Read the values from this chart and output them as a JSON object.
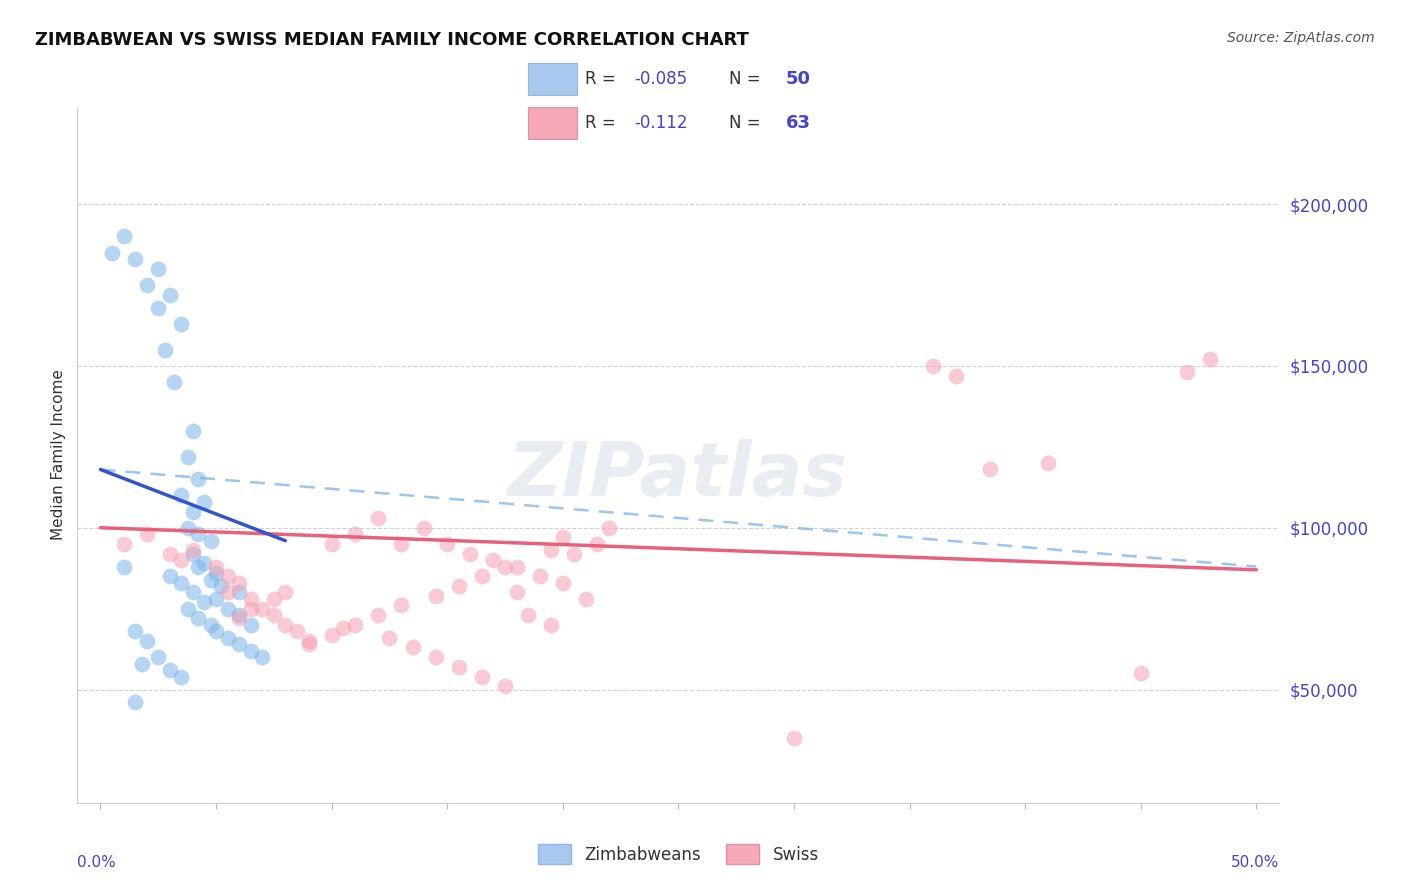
{
  "title": "ZIMBABWEAN VS SWISS MEDIAN FAMILY INCOME CORRELATION CHART",
  "source": "Source: ZipAtlas.com",
  "ylabel": "Median Family Income",
  "xlim": [
    -1,
    51
  ],
  "ylim": [
    15000,
    230000
  ],
  "yticks": [
    50000,
    100000,
    150000,
    200000
  ],
  "ytick_labels": [
    "$50,000",
    "$100,000",
    "$150,000",
    "$200,000"
  ],
  "title_fontsize": 13,
  "axis_color": "#4444cc",
  "background_color": "#ffffff",
  "grid_color": "#cccccc",
  "watermark_text": "ZIPatlas",
  "zim_color": "#7ab3e8",
  "swiss_color": "#f5a0b0",
  "zim_trend_color": "#3355cc",
  "swiss_trend_color": "#e8607a",
  "zim_dashed_color": "#88bbee",
  "zim_points_x": [
    0.5,
    1.0,
    1.5,
    2.0,
    2.5,
    3.0,
    2.5,
    3.5,
    2.8,
    3.2,
    4.0,
    3.8,
    4.2,
    3.5,
    4.0,
    4.5,
    3.8,
    4.2,
    4.8,
    4.0,
    4.5,
    4.2,
    5.0,
    4.8,
    5.2,
    6.0,
    5.0,
    5.5,
    6.0,
    6.5,
    1.5,
    1.0,
    1.5,
    2.0,
    2.5,
    1.8,
    3.0,
    3.5,
    3.0,
    3.5,
    4.0,
    4.5,
    3.8,
    4.2,
    4.8,
    5.0,
    5.5,
    6.0,
    6.5,
    7.0
  ],
  "zim_points_y": [
    185000,
    190000,
    183000,
    175000,
    180000,
    172000,
    168000,
    163000,
    155000,
    145000,
    130000,
    122000,
    115000,
    110000,
    105000,
    108000,
    100000,
    98000,
    96000,
    92000,
    89000,
    88000,
    86000,
    84000,
    82000,
    80000,
    78000,
    75000,
    73000,
    70000,
    46000,
    88000,
    68000,
    65000,
    60000,
    58000,
    56000,
    54000,
    85000,
    83000,
    80000,
    77000,
    75000,
    72000,
    70000,
    68000,
    66000,
    64000,
    62000,
    60000
  ],
  "swiss_points_x": [
    1.0,
    2.0,
    3.0,
    3.5,
    4.0,
    5.0,
    5.5,
    6.0,
    5.5,
    6.5,
    7.0,
    7.5,
    8.0,
    8.5,
    9.0,
    10.0,
    12.0,
    11.0,
    13.0,
    14.0,
    15.0,
    16.0,
    17.0,
    18.0,
    19.0,
    20.0,
    18.0,
    21.0,
    21.5,
    20.5,
    22.0,
    20.0,
    19.5,
    17.5,
    16.5,
    15.5,
    14.5,
    13.0,
    12.0,
    11.0,
    10.0,
    9.0,
    8.0,
    7.5,
    6.5,
    6.0,
    10.5,
    12.5,
    13.5,
    14.5,
    15.5,
    16.5,
    17.5,
    18.5,
    19.5,
    48.0,
    47.0,
    36.0,
    37.0,
    38.5,
    45.0,
    30.0,
    41.0
  ],
  "swiss_points_y": [
    95000,
    98000,
    92000,
    90000,
    93000,
    88000,
    85000,
    83000,
    80000,
    78000,
    75000,
    73000,
    70000,
    68000,
    65000,
    95000,
    103000,
    98000,
    95000,
    100000,
    95000,
    92000,
    90000,
    88000,
    85000,
    83000,
    80000,
    78000,
    95000,
    92000,
    100000,
    97000,
    93000,
    88000,
    85000,
    82000,
    79000,
    76000,
    73000,
    70000,
    67000,
    64000,
    80000,
    78000,
    75000,
    72000,
    69000,
    66000,
    63000,
    60000,
    57000,
    54000,
    51000,
    73000,
    70000,
    152000,
    148000,
    150000,
    147000,
    118000,
    55000,
    35000,
    120000
  ],
  "zim_trend_x0": 0,
  "zim_trend_x1": 50,
  "zim_trend_y0": 118000,
  "zim_trend_y1": 88000,
  "swiss_trend_x0": 0,
  "swiss_trend_x1": 50,
  "swiss_trend_y0": 100000,
  "swiss_trend_y1": 87000,
  "zim_solid_x0": 0,
  "zim_solid_x1": 8,
  "zim_solid_y0": 118000,
  "zim_solid_y1": 96000
}
